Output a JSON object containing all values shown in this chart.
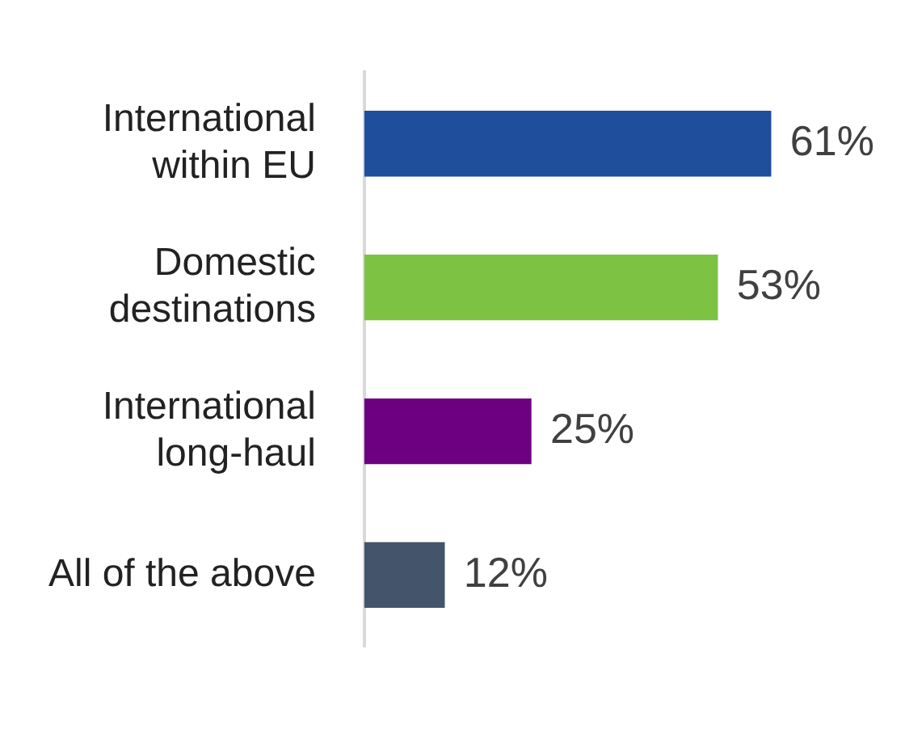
{
  "chart_data": {
    "type": "bar",
    "orientation": "horizontal",
    "categories": [
      "International within EU",
      "Domestic destinations",
      "International long-haul",
      "All of the above"
    ],
    "values": [
      61,
      53,
      25,
      12
    ],
    "colors": [
      "#1f4e9c",
      "#7dc242",
      "#6d0080",
      "#44546a"
    ],
    "value_labels": [
      "61%",
      "53%",
      "25%",
      "12%"
    ],
    "legend": false,
    "tick_labels": "y"
  }
}
